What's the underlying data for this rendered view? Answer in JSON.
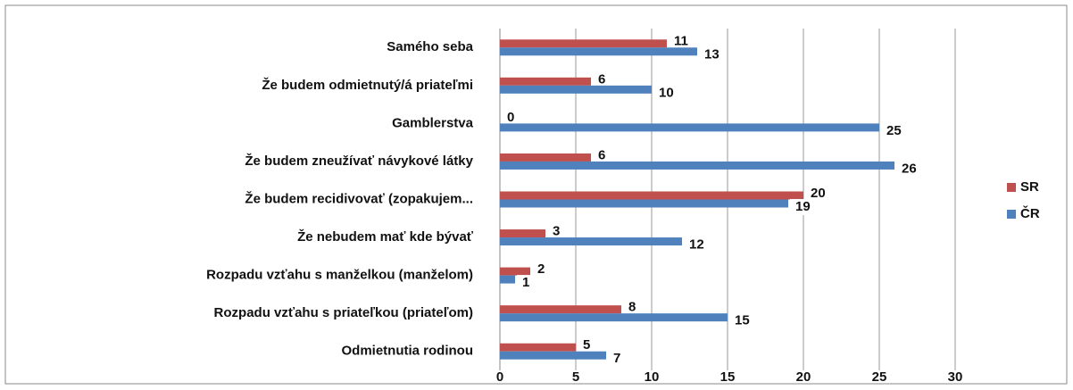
{
  "chart_data": {
    "type": "hbar",
    "categories": [
      "Samého  seba",
      "Že budem odmietnutý/á priateľmi",
      "Gamblerstva",
      "Že budem zneužívať návykové látky",
      "Že budem recidivovať  (zopakujem...",
      "Že  nebudem mať kde bývať",
      "Rozpadu vzťahu s manželkou (manželom)",
      "Rozpadu vzťahu s priateľkou (priateľom)",
      "Odmietnutia  rodinou"
    ],
    "series": [
      {
        "name": "SR",
        "color": "#c0504d",
        "values": [
          11,
          6,
          0,
          6,
          20,
          3,
          2,
          8,
          5
        ]
      },
      {
        "name": "ČR",
        "color": "#4f81bd",
        "values": [
          13,
          10,
          25,
          26,
          19,
          12,
          1,
          15,
          7
        ]
      }
    ],
    "xlim": [
      0,
      30
    ],
    "xticks": [
      0,
      5,
      10,
      15,
      20,
      25,
      30
    ],
    "grid": true,
    "legend": "right"
  }
}
